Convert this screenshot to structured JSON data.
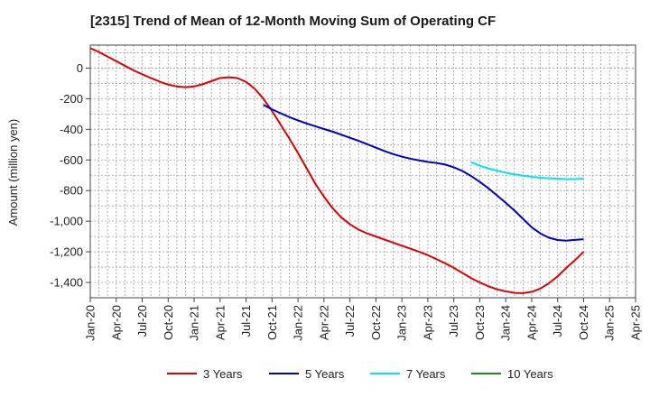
{
  "chart_data": {
    "type": "line",
    "title": "[2315]  Trend of Mean of 12-Month Moving Sum of Operating CF",
    "xlabel": "",
    "ylabel": "Amount (million yen)",
    "ylim": [
      -1500,
      150
    ],
    "yticks": [
      0,
      -200,
      -400,
      -600,
      -800,
      -1000,
      -1200,
      -1400
    ],
    "ytick_labels": [
      "0",
      "-200",
      "-400",
      "-600",
      "-800",
      "-1,000",
      "-1,200",
      "-1,400"
    ],
    "x_categories": [
      "Jan-20",
      "Apr-20",
      "Jul-20",
      "Oct-20",
      "Jan-21",
      "Apr-21",
      "Jul-21",
      "Oct-21",
      "Jan-22",
      "Apr-22",
      "Jul-22",
      "Oct-22",
      "Jan-23",
      "Apr-23",
      "Jul-23",
      "Oct-23",
      "Jan-24",
      "Apr-24",
      "Jul-24",
      "Oct-24",
      "Jan-25",
      "Apr-25"
    ],
    "grid": true,
    "legend_position": "bottom",
    "series": [
      {
        "name": "3 Years",
        "color": "#e00000",
        "x": [
          "Jan-20",
          "Feb-20",
          "Mar-20",
          "Apr-20",
          "May-20",
          "Jun-20",
          "Jul-20",
          "Aug-20",
          "Sep-20",
          "Oct-20",
          "Nov-20",
          "Dec-20",
          "Jan-21",
          "Feb-21",
          "Mar-21",
          "Apr-21",
          "May-21",
          "Jun-21",
          "Jul-21",
          "Aug-21",
          "Sep-21",
          "Oct-21",
          "Nov-21",
          "Dec-21",
          "Jan-22",
          "Feb-22",
          "Mar-22",
          "Apr-22",
          "May-22",
          "Jun-22",
          "Jul-22",
          "Aug-22",
          "Sep-22",
          "Oct-22",
          "Nov-22",
          "Dec-22",
          "Jan-23",
          "Feb-23",
          "Mar-23",
          "Apr-23",
          "May-23",
          "Jun-23",
          "Jul-23",
          "Aug-23",
          "Sep-23",
          "Oct-23",
          "Nov-23",
          "Dec-23",
          "Jan-24",
          "Feb-24",
          "Mar-24",
          "Apr-24",
          "May-24",
          "Jun-24",
          "Jul-24",
          "Aug-24",
          "Sep-24",
          "Oct-24"
        ],
        "values": [
          130,
          105,
          75,
          45,
          15,
          -15,
          -40,
          -65,
          -88,
          -108,
          -120,
          -125,
          -120,
          -105,
          -85,
          -65,
          -60,
          -65,
          -90,
          -135,
          -200,
          -280,
          -370,
          -460,
          -555,
          -655,
          -755,
          -840,
          -915,
          -975,
          -1020,
          -1055,
          -1080,
          -1100,
          -1120,
          -1140,
          -1160,
          -1180,
          -1200,
          -1222,
          -1248,
          -1275,
          -1305,
          -1338,
          -1372,
          -1400,
          -1425,
          -1445,
          -1458,
          -1468,
          -1470,
          -1462,
          -1440,
          -1405,
          -1360,
          -1305,
          -1255,
          -1200
        ]
      },
      {
        "name": "5 Years",
        "color": "#0000c8",
        "x": [
          "Sep-21",
          "Oct-21",
          "Nov-21",
          "Dec-21",
          "Jan-22",
          "Feb-22",
          "Mar-22",
          "Apr-22",
          "May-22",
          "Jun-22",
          "Jul-22",
          "Aug-22",
          "Sep-22",
          "Oct-22",
          "Nov-22",
          "Dec-22",
          "Jan-23",
          "Feb-23",
          "Mar-23",
          "Apr-23",
          "May-23",
          "Jun-23",
          "Jul-23",
          "Aug-23",
          "Sep-23",
          "Oct-23",
          "Nov-23",
          "Dec-23",
          "Jan-24",
          "Feb-24",
          "Mar-24",
          "Apr-24",
          "May-24",
          "Jun-24",
          "Jul-24",
          "Aug-24",
          "Sep-24",
          "Oct-24"
        ],
        "values": [
          -240,
          -270,
          -295,
          -320,
          -342,
          -362,
          -380,
          -398,
          -415,
          -435,
          -455,
          -475,
          -497,
          -520,
          -542,
          -562,
          -578,
          -592,
          -603,
          -613,
          -620,
          -630,
          -648,
          -672,
          -705,
          -743,
          -785,
          -832,
          -880,
          -930,
          -985,
          -1040,
          -1080,
          -1108,
          -1123,
          -1127,
          -1122,
          -1118
        ]
      },
      {
        "name": "7 Years",
        "color": "#00e5ee",
        "x": [
          "Sep-23",
          "Oct-23",
          "Nov-23",
          "Dec-23",
          "Jan-24",
          "Feb-24",
          "Mar-24",
          "Apr-24",
          "May-24",
          "Jun-24",
          "Jul-24",
          "Aug-24",
          "Sep-24",
          "Oct-24"
        ],
        "values": [
          -615,
          -638,
          -655,
          -670,
          -683,
          -694,
          -703,
          -710,
          -716,
          -720,
          -723,
          -725,
          -725,
          -723
        ]
      },
      {
        "name": "10 Years",
        "color": "#1a8a1a",
        "x": [],
        "values": []
      }
    ]
  }
}
